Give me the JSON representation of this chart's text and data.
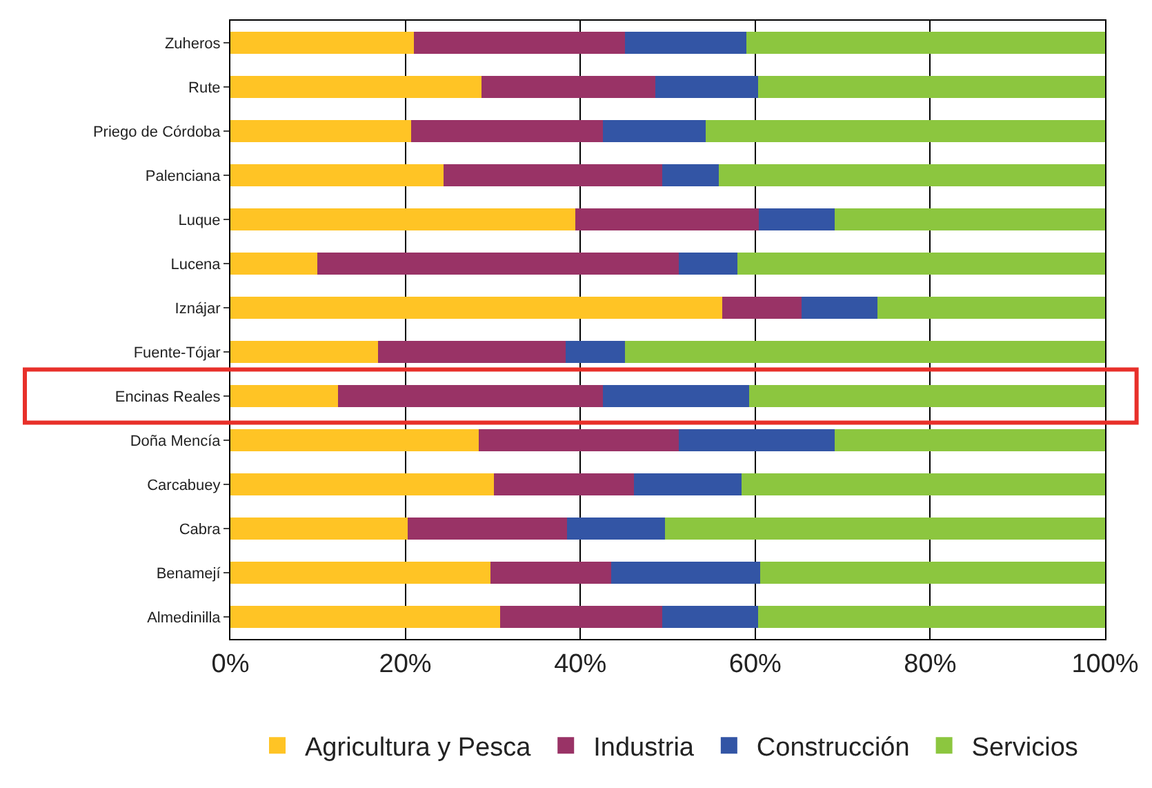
{
  "chart_data": {
    "type": "bar",
    "orientation": "horizontal",
    "stacked": true,
    "categories": [
      "Zuheros",
      "Rute",
      "Priego de Córdoba",
      "Palenciana",
      "Luque",
      "Lucena",
      "Iznájar",
      "Fuente-Tójar",
      "Encinas Reales",
      "Doña Mencía",
      "Carcabuey",
      "Cabra",
      "Benamejí",
      "Almedinilla"
    ],
    "series": [
      {
        "name": "Agricultura y Pesca",
        "color": "#ffc425",
        "values": [
          21.0,
          28.7,
          20.7,
          24.4,
          39.4,
          9.9,
          56.2,
          16.9,
          12.3,
          28.4,
          30.1,
          20.3,
          29.7,
          30.8
        ]
      },
      {
        "name": "Industria",
        "color": "#993366",
        "values": [
          24.1,
          19.9,
          21.9,
          25.0,
          21.0,
          41.4,
          9.1,
          21.4,
          30.3,
          22.9,
          16.0,
          18.2,
          13.8,
          18.6
        ]
      },
      {
        "name": "Construcción",
        "color": "#3355a5",
        "values": [
          13.9,
          11.7,
          11.7,
          6.4,
          8.7,
          6.7,
          8.7,
          6.8,
          16.7,
          17.8,
          12.3,
          11.2,
          17.1,
          10.9
        ]
      },
      {
        "name": "Servicios",
        "color": "#8cc63f",
        "values": [
          41.0,
          39.7,
          45.7,
          44.2,
          30.9,
          42.0,
          26.0,
          54.9,
          40.7,
          30.9,
          41.6,
          50.3,
          39.4,
          39.7
        ]
      }
    ],
    "xlim": [
      0,
      100
    ],
    "xticks": [
      {
        "value": 0,
        "label": "0%"
      },
      {
        "value": 20,
        "label": "20%"
      },
      {
        "value": 40,
        "label": "40%"
      },
      {
        "value": 60,
        "label": "60%"
      },
      {
        "value": 80,
        "label": "80%"
      },
      {
        "value": 100,
        "label": "100%"
      }
    ],
    "grid": "x",
    "legend": "bottom"
  }
}
